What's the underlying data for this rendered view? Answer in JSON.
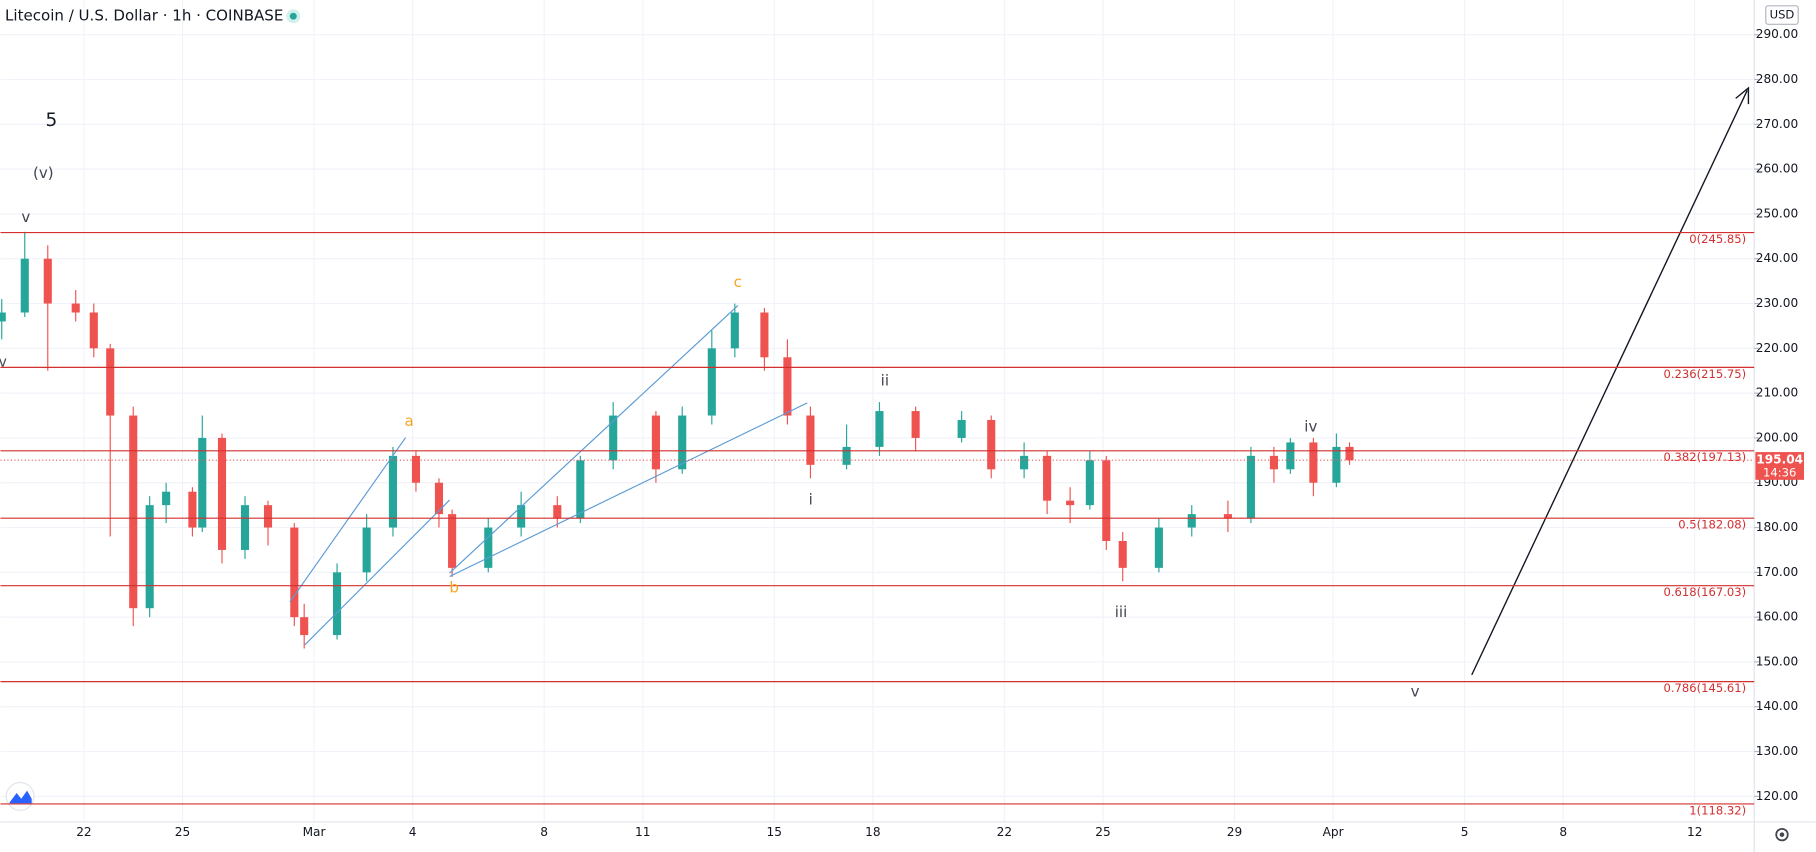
{
  "chart_data": {
    "type": "candlestick",
    "title": "Litecoin / U.S. Dollar · 1h · COINBASE",
    "currency": "USD",
    "up_color": "#26a69a",
    "down_color": "#ef5350",
    "grid": true,
    "x": [
      -2.5,
      -1.8,
      -1.1,
      -0.25,
      0.3,
      0.8,
      1.5,
      2.0,
      2.5,
      3.3,
      3.6,
      4.2,
      4.9,
      5.6,
      6.4,
      6.7,
      7.7,
      8.6,
      9.4,
      10.1,
      10.8,
      11.2,
      12.3,
      13.3,
      14.4,
      15.1,
      16.1,
      17.4,
      18.2,
      19.1,
      19.8,
      20.7,
      21.4,
      22.1,
      23.2,
      24.2,
      25.3,
      26.7,
      27.6,
      28.6,
      29.3,
      30.0,
      30.6,
      31.1,
      31.6,
      32.7,
      33.7,
      34.8,
      35.5,
      36.2,
      36.7,
      37.4,
      38.1,
      38.5
    ],
    "open": [
      226,
      228,
      240,
      230,
      228,
      220,
      205,
      162,
      185,
      188,
      180,
      200,
      175,
      185,
      180,
      160,
      156,
      170,
      180,
      196,
      190,
      183,
      171,
      180,
      185,
      182,
      195,
      205,
      193,
      205,
      220,
      228,
      218,
      205,
      194,
      198,
      206,
      200,
      204,
      193,
      196,
      186,
      185,
      195,
      177,
      171,
      180,
      183,
      182,
      196,
      193,
      199,
      190,
      198
    ],
    "high": [
      231,
      246,
      243,
      233,
      230,
      221,
      207,
      187,
      190,
      189,
      205,
      201,
      187,
      186,
      181,
      163,
      172,
      183,
      198,
      197,
      191,
      184,
      182,
      188,
      187,
      196,
      208,
      206,
      207,
      224,
      230,
      229,
      222,
      207,
      203,
      208,
      207,
      206,
      205,
      199,
      197,
      189,
      197,
      196,
      179,
      182,
      185,
      186,
      198,
      198,
      200,
      200,
      201,
      199
    ],
    "low": [
      222,
      227,
      215,
      226,
      218,
      178,
      158,
      160,
      181,
      178,
      179,
      172,
      173,
      176,
      158,
      153,
      155,
      168,
      178,
      188,
      180,
      169,
      170,
      178,
      180,
      181,
      193,
      190,
      192,
      203,
      218,
      215,
      203,
      191,
      193,
      196,
      197,
      199,
      191,
      191,
      183,
      181,
      184,
      175,
      168,
      170,
      178,
      179,
      181,
      190,
      192,
      187,
      189,
      194
    ],
    "close": [
      228,
      240,
      230,
      228,
      220,
      205,
      162,
      185,
      188,
      180,
      200,
      175,
      185,
      180,
      160,
      156,
      170,
      180,
      196,
      190,
      183,
      171,
      180,
      185,
      182,
      195,
      205,
      193,
      205,
      220,
      228,
      218,
      205,
      194,
      198,
      206,
      200,
      204,
      193,
      196,
      186,
      185,
      195,
      177,
      171,
      180,
      183,
      182,
      196,
      193,
      199,
      190,
      198,
      195.04
    ],
    "xlim": [
      -2.54,
      50.81
    ],
    "xticks": [
      {
        "value": 0,
        "label": "22"
      },
      {
        "value": 3,
        "label": "25"
      },
      {
        "value": 7,
        "label": "Mar"
      },
      {
        "value": 10,
        "label": "4"
      },
      {
        "value": 14,
        "label": "8"
      },
      {
        "value": 17,
        "label": "11"
      },
      {
        "value": 21,
        "label": "15"
      },
      {
        "value": 24,
        "label": "18"
      },
      {
        "value": 28,
        "label": "22"
      },
      {
        "value": 31,
        "label": "25"
      },
      {
        "value": 35,
        "label": "29"
      },
      {
        "value": 38,
        "label": "Apr"
      },
      {
        "value": 42,
        "label": "5"
      },
      {
        "value": 45,
        "label": "8"
      },
      {
        "value": 49,
        "label": "12"
      }
    ],
    "ylim": [
      114.3,
      297.75
    ],
    "yticks": [
      {
        "value": 120,
        "label": "120.00"
      },
      {
        "value": 130,
        "label": "130.00"
      },
      {
        "value": 140,
        "label": "140.00"
      },
      {
        "value": 150,
        "label": "150.00"
      },
      {
        "value": 160,
        "label": "160.00"
      },
      {
        "value": 170,
        "label": "170.00"
      },
      {
        "value": 180,
        "label": "180.00"
      },
      {
        "value": 190,
        "label": "190.00"
      },
      {
        "value": 200,
        "label": "200.00"
      },
      {
        "value": 210,
        "label": "210.00"
      },
      {
        "value": 220,
        "label": "220.00"
      },
      {
        "value": 230,
        "label": "230.00"
      },
      {
        "value": 240,
        "label": "240.00"
      },
      {
        "value": 250,
        "label": "250.00"
      },
      {
        "value": 260,
        "label": "260.00"
      },
      {
        "value": 270,
        "label": "270.00"
      },
      {
        "value": 280,
        "label": "280.00"
      },
      {
        "value": 290,
        "label": "290.00"
      }
    ],
    "fib_color": "#d32f2f",
    "fib_levels": [
      {
        "value": 245.85,
        "label": "0(245.85)"
      },
      {
        "value": 215.75,
        "label": "0.236(215.75)"
      },
      {
        "value": 197.13,
        "label": "0.382(197.13)"
      },
      {
        "value": 182.08,
        "label": "0.5(182.08)"
      },
      {
        "value": 167.03,
        "label": "0.618(167.03)"
      },
      {
        "value": 145.61,
        "label": "0.786(145.61)"
      },
      {
        "value": 118.32,
        "label": "1(118.32)"
      }
    ],
    "last_price": 195.04,
    "last_price_color": "#ef5350",
    "countdown": "14:36",
    "annotations": [
      {
        "text": "5",
        "color": "#131722"
      },
      {
        "text": "(v)",
        "color": "#434651"
      },
      {
        "text": "v",
        "color": "#434651"
      },
      {
        "text": "v",
        "color": "#434651"
      },
      {
        "text": "a",
        "color": "#f5a623"
      },
      {
        "text": "b",
        "color": "#f5a623"
      },
      {
        "text": "c",
        "color": "#f5a623"
      },
      {
        "text": "i",
        "color": "#434651"
      },
      {
        "text": "ii",
        "color": "#434651"
      },
      {
        "text": "iii",
        "color": "#434651"
      },
      {
        "text": "iv",
        "color": "#434651"
      },
      {
        "text": "v",
        "color": "#434651"
      }
    ]
  }
}
